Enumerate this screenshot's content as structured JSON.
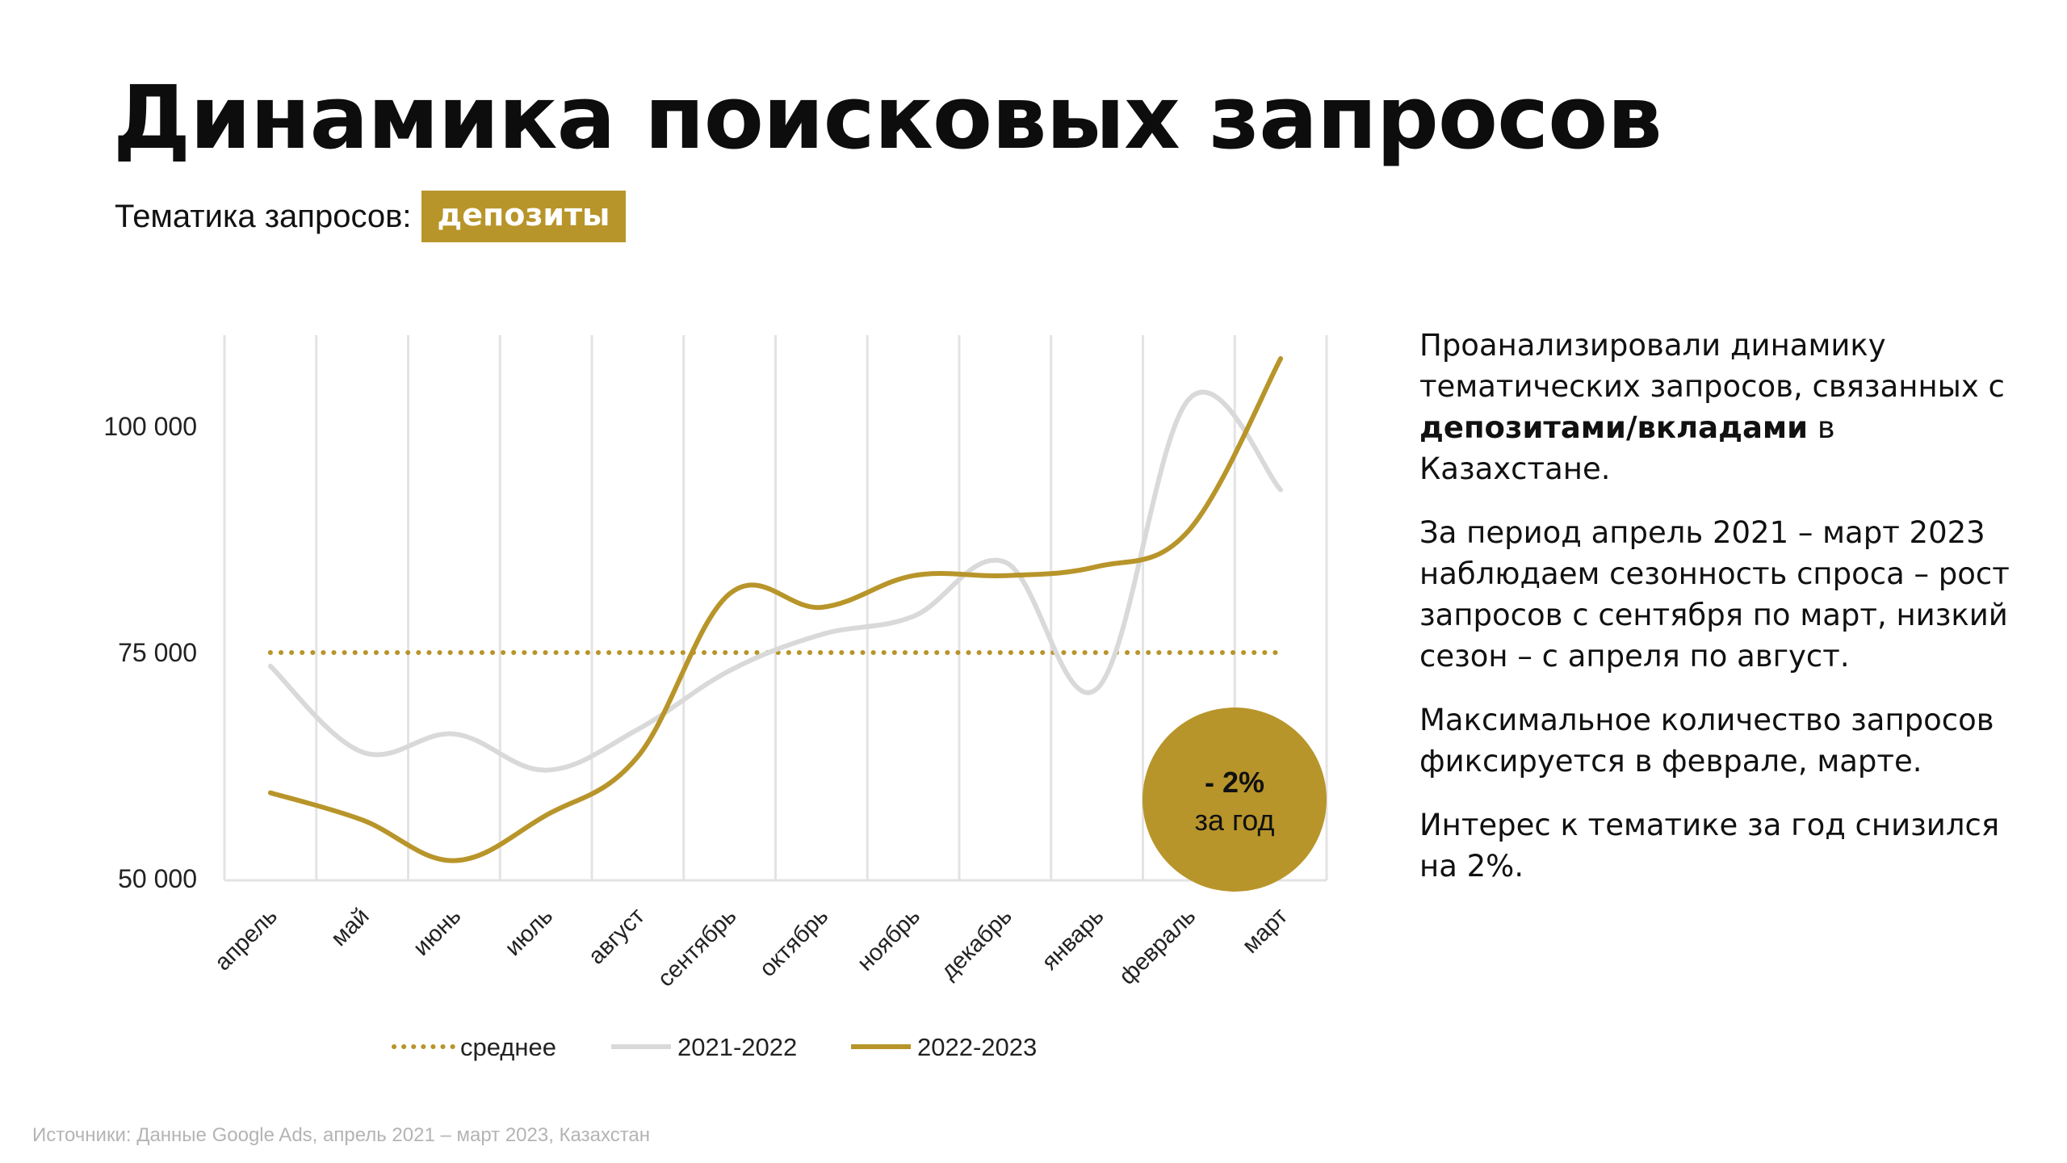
{
  "title": "Динамика поисковых запросов",
  "topic": {
    "label": "Тематика запросов:",
    "value": "депозиты"
  },
  "chart_data": {
    "type": "line",
    "categories": [
      "апрель",
      "май",
      "июнь",
      "июль",
      "август",
      "сентябрь",
      "октябрь",
      "ноябрь",
      "декабрь",
      "январь",
      "февраль",
      "март"
    ],
    "series": [
      {
        "name": "среднее",
        "style": "dotted",
        "color": "#b8952a",
        "values": [
          75000,
          75000,
          75000,
          75000,
          75000,
          75000,
          75000,
          75000,
          75000,
          75000,
          75000,
          75000
        ]
      },
      {
        "name": "2021-2022",
        "style": "solid",
        "color": "#d9d9d9",
        "values": [
          73500,
          64000,
          66000,
          62000,
          66500,
          73000,
          77000,
          79000,
          85000,
          71000,
          103000,
          93000
        ]
      },
      {
        "name": "2022-2023",
        "style": "solid",
        "color": "#b8952a",
        "values": [
          59500,
          56500,
          52000,
          57000,
          63500,
          81500,
          80000,
          83500,
          83500,
          84500,
          88500,
          107500
        ]
      }
    ],
    "y_ticks": [
      "50 000",
      "75 000",
      "100 000"
    ],
    "y_tick_values": [
      50000,
      75000,
      100000
    ],
    "ylim": [
      50000,
      110000
    ],
    "grid": "vertical",
    "legend_position": "bottom",
    "annotation": {
      "value": "- 2%",
      "label": "за год",
      "color": "#b8952a"
    }
  },
  "text": {
    "p1_pre": "Проанализировали динамику тематических запросов, связанных с ",
    "p1_bold": "депозитами/вкладами",
    "p1_post": " в Казахстане.",
    "p2": "За период апрель 2021 – март 2023 наблюдаем сезонность спроса – рост запросов с сентября по март, низкий сезон – с апреля по август.",
    "p3": "Максимальное количество запросов фиксируется в феврале, марте.",
    "p4": "Интерес к тематике за год снизился на 2%."
  },
  "source": "Источники: Данные Google Ads, апрель 2021 – март 2023, Казахстан"
}
